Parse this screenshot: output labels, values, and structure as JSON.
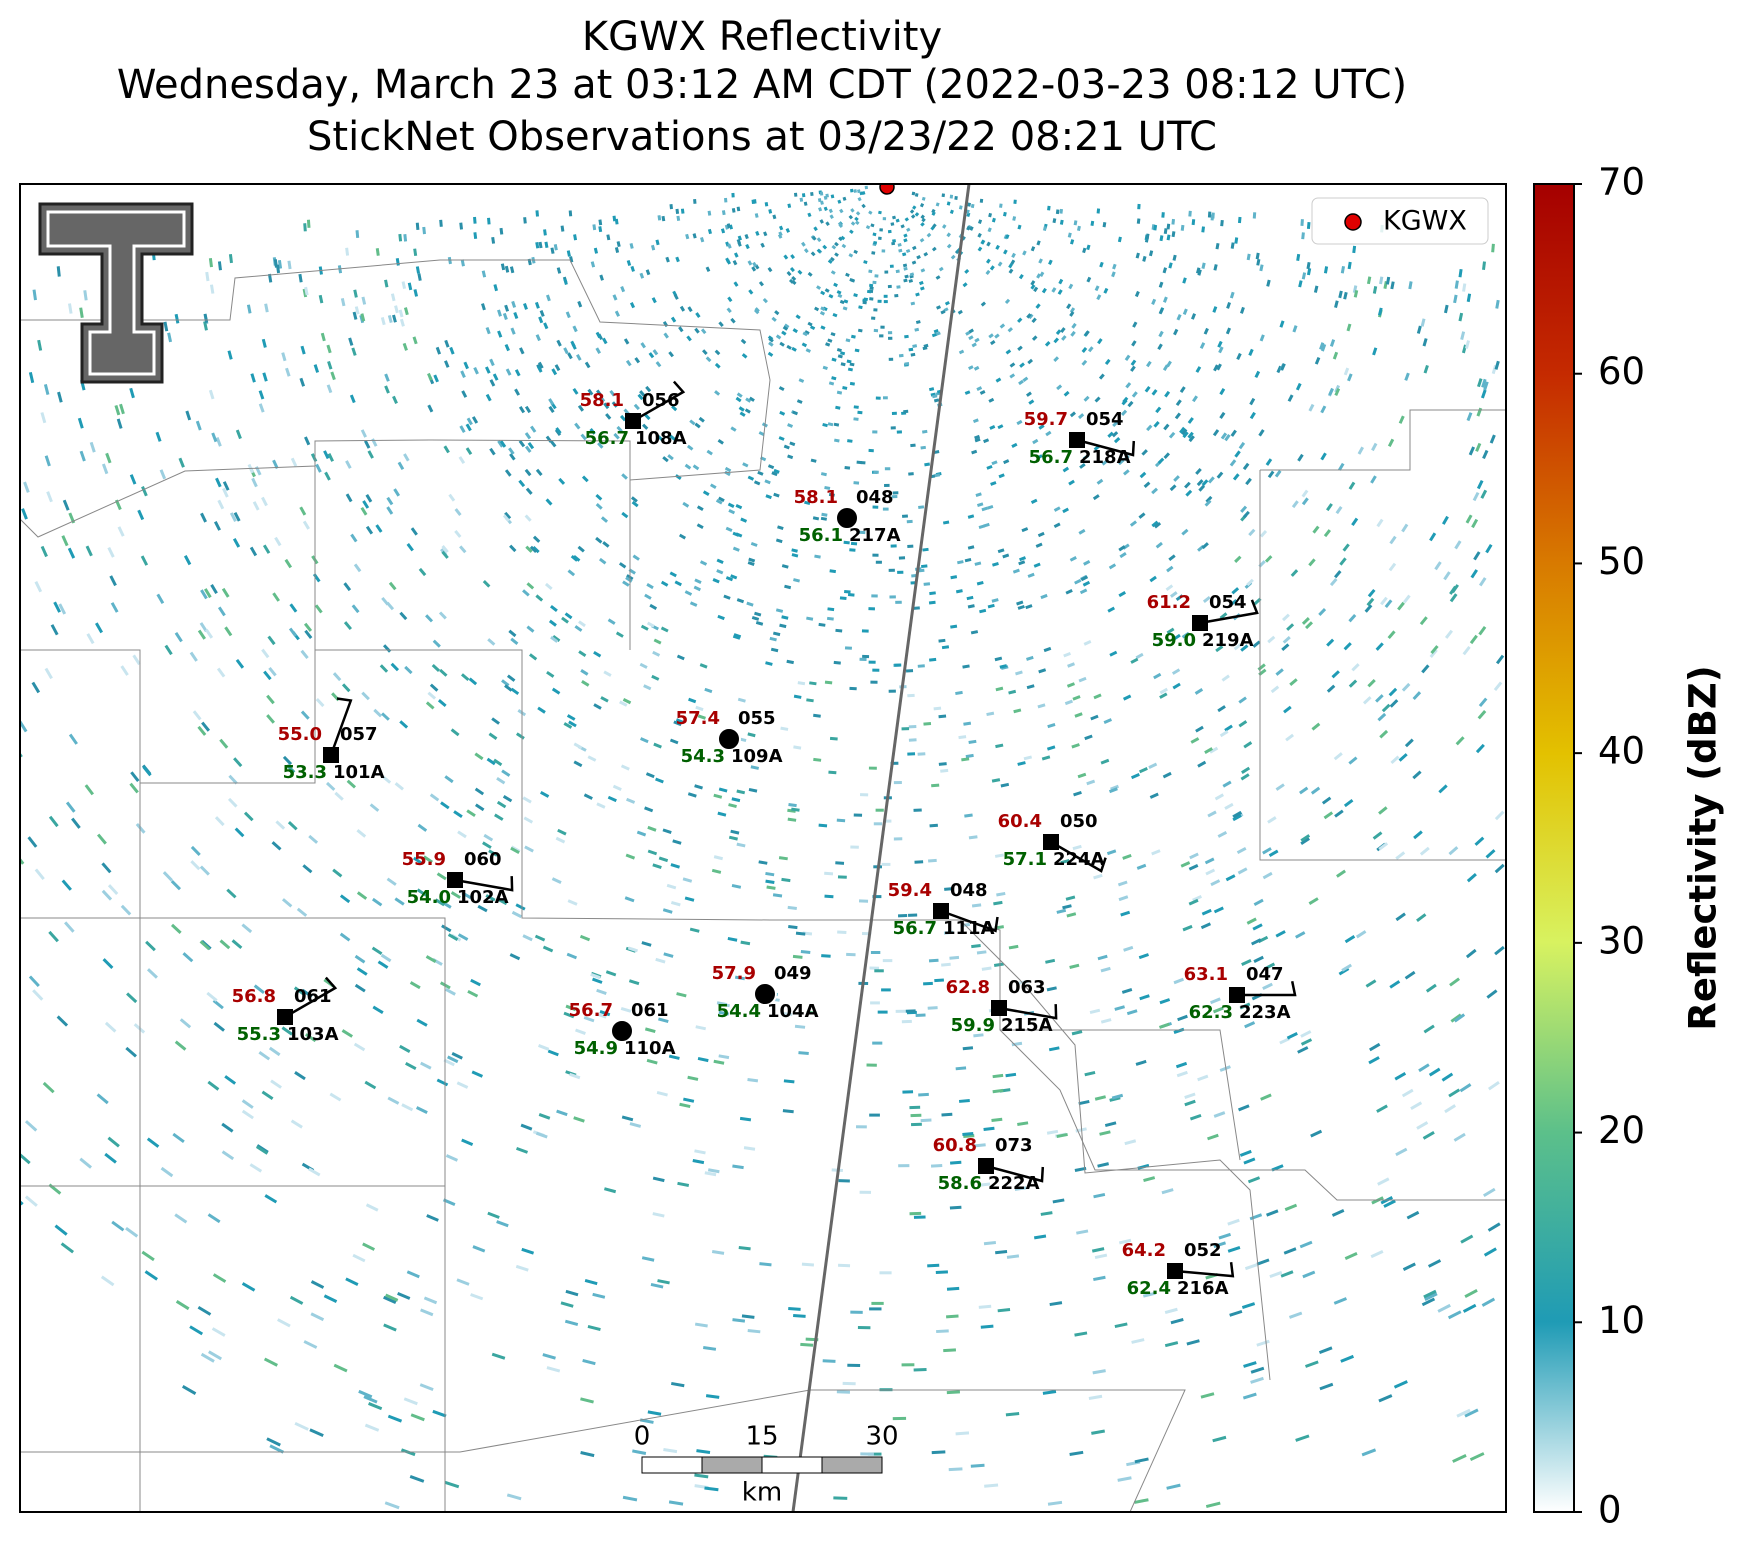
{
  "header": {
    "title_lines": [
      "KGWX Reflectivity",
      "Wednesday, March 23 at 03:12 AM CDT (2022-03-23 08:12 UTC)",
      "StickNet Observations at 03/23/22 08:21 UTC"
    ]
  },
  "legend": {
    "label": "KGWX",
    "color": "#e00000"
  },
  "colorbar": {
    "label": "Reflectivity (dBZ)",
    "clim": [
      0,
      70
    ],
    "ticks": [
      0,
      10,
      20,
      30,
      40,
      50,
      60,
      70
    ]
  },
  "scale_bar": {
    "ticks": [
      "0",
      "15",
      "30"
    ],
    "unit": "km"
  },
  "stations": [
    {
      "id": "108A",
      "temp": "58.1",
      "dew": "56.7",
      "pres": "056",
      "wind_from": 240
    },
    {
      "id": "218A",
      "temp": "59.7",
      "dew": "56.7",
      "pres": "054",
      "wind_from": 285
    },
    {
      "id": "217A",
      "temp": "58.1",
      "dew": "56.1",
      "pres": "048",
      "wind_from": null
    },
    {
      "id": "219A",
      "temp": "61.2",
      "dew": "59.0",
      "pres": "054",
      "wind_from": 260
    },
    {
      "id": "109A",
      "temp": "57.4",
      "dew": "54.3",
      "pres": "055",
      "wind_from": null
    },
    {
      "id": "101A",
      "temp": "55.0",
      "dew": "53.3",
      "pres": "057",
      "wind_from": 200
    },
    {
      "id": "224A",
      "temp": "60.4",
      "dew": "57.1",
      "pres": "050",
      "wind_from": 300
    },
    {
      "id": "102A",
      "temp": "55.9",
      "dew": "54.0",
      "pres": "060",
      "wind_from": 280
    },
    {
      "id": "111A",
      "temp": "59.4",
      "dew": "56.7",
      "pres": "048",
      "wind_from": 290
    },
    {
      "id": "104A",
      "temp": "57.9",
      "dew": "54.4",
      "pres": "049",
      "wind_from": null
    },
    {
      "id": "215A",
      "temp": "62.8",
      "dew": "59.9",
      "pres": "063",
      "wind_from": 280
    },
    {
      "id": "223A",
      "temp": "63.1",
      "dew": "62.3",
      "pres": "047",
      "wind_from": 270
    },
    {
      "id": "103A",
      "temp": "56.8",
      "dew": "55.3",
      "pres": "061",
      "wind_from": 240
    },
    {
      "id": "110A",
      "temp": "56.7",
      "dew": "54.9",
      "pres": "061",
      "wind_from": null
    },
    {
      "id": "222A",
      "temp": "60.8",
      "dew": "58.6",
      "pres": "073",
      "wind_from": 285
    },
    {
      "id": "216A",
      "temp": "64.2",
      "dew": "62.4",
      "pres": "052",
      "wind_from": 275
    }
  ]
}
